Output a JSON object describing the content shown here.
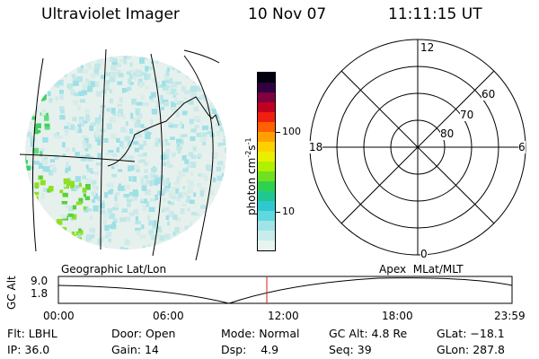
{
  "header": {
    "title": "Ultraviolet Imager",
    "date": "10 Nov 07",
    "time": "11:11:15 UT"
  },
  "colorbar": {
    "unit_label": "photon cm",
    "exp1": "-2",
    "mid": "s",
    "exp2": "-1",
    "tick_high": "100",
    "tick_low": "10",
    "colors": [
      "#e8f4f0",
      "#c8ecec",
      "#a0e4e8",
      "#60d8e0",
      "#30c8d0",
      "#20c890",
      "#30d050",
      "#70e020",
      "#b0f000",
      "#e8f000",
      "#ffd000",
      "#ffa000",
      "#ff6000",
      "#f02010",
      "#c00020",
      "#800040",
      "#300040",
      "#000010"
    ]
  },
  "polar": {
    "mlt_top": "12",
    "mlt_left": "18",
    "mlt_right": "6",
    "mlt_bottom": "0",
    "lat_labels": [
      "60",
      "70",
      "80"
    ]
  },
  "timeline": {
    "left_label": "Geographic Lat/Lon",
    "right_label": "Apex  MLat/MLT",
    "axis_label": "GC Alt",
    "y_high": "9.0",
    "y_low": "1.8",
    "ticks": [
      "00:00",
      "06:00",
      "12:00",
      "18:00",
      "23:59"
    ],
    "cursor_color": "#cc2222"
  },
  "status": {
    "flt_label": "Flt:",
    "flt_value": "LBHL",
    "ip_label": "IP:",
    "ip_value": "36.0",
    "door_label": "Door:",
    "door_value": "Open",
    "gain_label": "Gain:",
    "gain_value": "14",
    "mode_label": "Mode:",
    "mode_value": "Normal",
    "dsp_label": "Dsp:",
    "dsp_value": "4.9",
    "gcalt_label": "GC Alt:",
    "gcalt_value": "4.8 Re",
    "seq_label": "Seq:",
    "seq_value": "39",
    "glat_label": "GLat:",
    "glat_value": "−18.1",
    "glon_label": "GLon:",
    "glon_value": "287.8"
  }
}
